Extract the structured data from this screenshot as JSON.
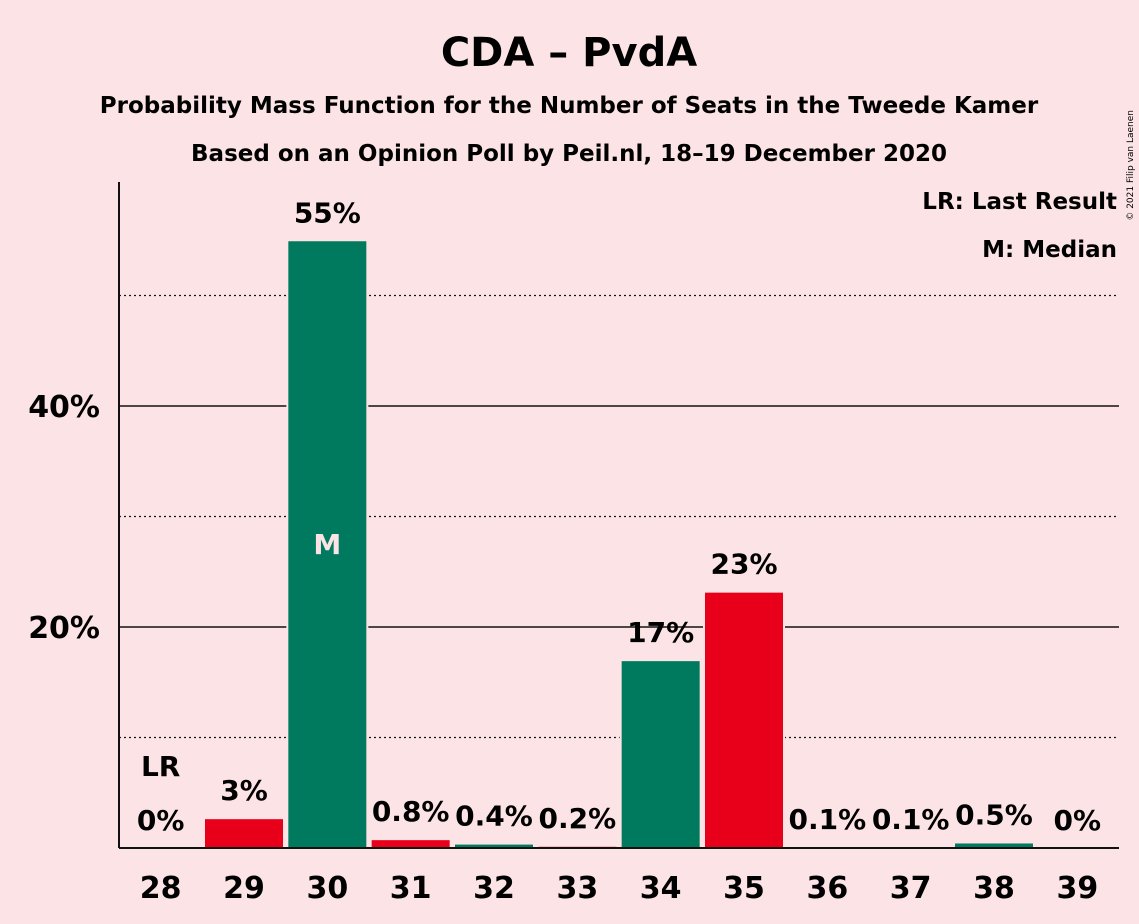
{
  "chart_data": {
    "type": "bar",
    "title": "CDA – PvdA",
    "subtitle_1": "Probability Mass Function for the Number of Seats in the Tweede Kamer",
    "subtitle_2": "Based on an Opinion Poll by Peil.nl, 18–19 December 2020",
    "copyright": "© 2021 Filip van Laenen",
    "legend": [
      "LR: Last Result",
      "M: Median"
    ],
    "categories": [
      "28",
      "29",
      "30",
      "31",
      "32",
      "33",
      "34",
      "35",
      "36",
      "37",
      "38",
      "39"
    ],
    "values": [
      0,
      2.7,
      55,
      0.8,
      0.4,
      0.2,
      17,
      23.2,
      0.1,
      0.1,
      0.5,
      0
    ],
    "value_labels": [
      "0%",
      "3%",
      "55%",
      "0.8%",
      "0.4%",
      "0.2%",
      "17%",
      "23%",
      "0.1%",
      "0.1%",
      "0.5%",
      "0%"
    ],
    "bar_colors": [
      "#e8001a",
      "#e8001a",
      "#007a5e",
      "#e8001a",
      "#007a5e",
      "#e8001a",
      "#007a5e",
      "#e8001a",
      "#007a5e",
      "#e8001a",
      "#007a5e",
      "#e8001a"
    ],
    "markers": {
      "last_result": "28",
      "median": "30"
    },
    "marker_labels": {
      "last_result": "LR",
      "median": "M"
    },
    "yticks": [
      20,
      40
    ],
    "ytick_labels": [
      "20%",
      "40%"
    ],
    "minor_gridlines": [
      10,
      30,
      50
    ],
    "ylim": [
      0,
      60
    ],
    "colors": {
      "background": "#fce4e6",
      "green": "#007a5e",
      "red": "#e8001a"
    }
  }
}
